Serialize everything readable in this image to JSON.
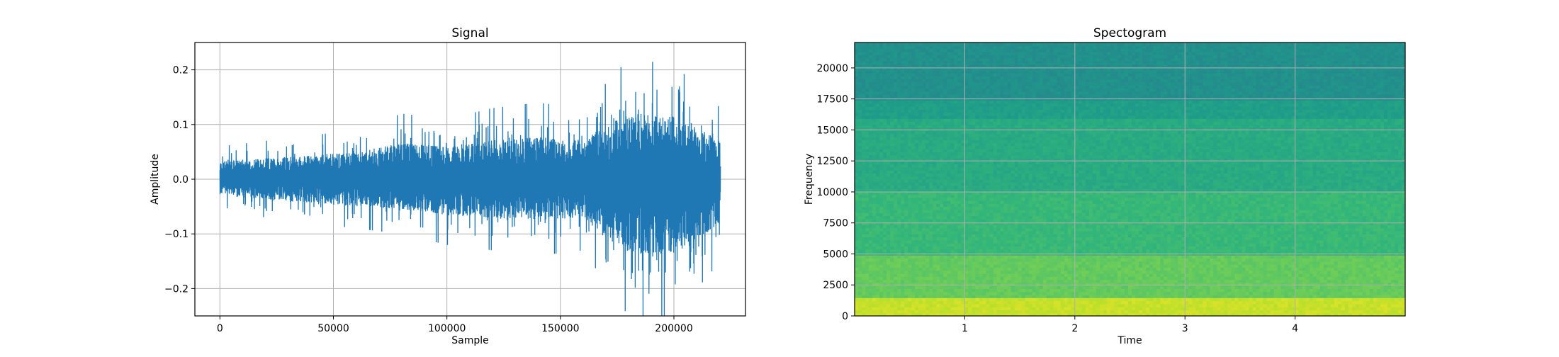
{
  "chart_data": [
    {
      "type": "line",
      "title": "Signal",
      "xlabel": "Sample",
      "ylabel": "Amplitude",
      "xlim": [
        -11025,
        231525
      ],
      "ylim": [
        -0.25,
        0.25
      ],
      "xticks": [
        0,
        50000,
        100000,
        150000,
        200000
      ],
      "xtick_labels": [
        "0",
        "50000",
        "100000",
        "150000",
        "200000"
      ],
      "yticks": [
        -0.2,
        -0.1,
        0.0,
        0.1,
        0.2
      ],
      "ytick_labels": [
        "−0.2",
        "−0.1",
        "0.0",
        "0.1",
        "0.2"
      ],
      "grid": true,
      "color": "#1f77b4",
      "series": [
        {
          "x": [
            0,
            20000,
            40000,
            60000,
            80000,
            100000,
            120000,
            140000,
            160000,
            180000,
            200000,
            220500
          ],
          "y_max": [
            0.06,
            0.07,
            0.08,
            0.09,
            0.12,
            0.11,
            0.13,
            0.14,
            0.13,
            0.22,
            0.21,
            0.13
          ],
          "y_min": [
            -0.05,
            -0.07,
            -0.08,
            -0.09,
            -0.1,
            -0.12,
            -0.13,
            -0.14,
            -0.13,
            -0.25,
            -0.25,
            -0.15
          ]
        }
      ]
    },
    {
      "type": "heatmap",
      "title": "Spectogram",
      "xlabel": "Time",
      "ylabel": "Frequency",
      "xlim": [
        0,
        5
      ],
      "ylim": [
        0,
        22050
      ],
      "xticks": [
        1,
        2,
        3,
        4
      ],
      "xtick_labels": [
        "1",
        "2",
        "3",
        "4"
      ],
      "yticks": [
        0,
        2500,
        5000,
        7500,
        10000,
        12500,
        15000,
        17500,
        20000
      ],
      "ytick_labels": [
        "0",
        "2500",
        "5000",
        "7500",
        "10000",
        "12500",
        "15000",
        "17500",
        "20000"
      ],
      "grid": true,
      "colormap": "viridis",
      "frequency_bands": [
        {
          "from": 0,
          "to": 1500,
          "level": 0.92
        },
        {
          "from": 1500,
          "to": 5000,
          "level": 0.76
        },
        {
          "from": 5000,
          "to": 10000,
          "level": 0.67
        },
        {
          "from": 10000,
          "to": 16000,
          "level": 0.61
        },
        {
          "from": 16000,
          "to": 17500,
          "level": 0.56
        },
        {
          "from": 17500,
          "to": 22050,
          "level": 0.5
        }
      ]
    }
  ]
}
